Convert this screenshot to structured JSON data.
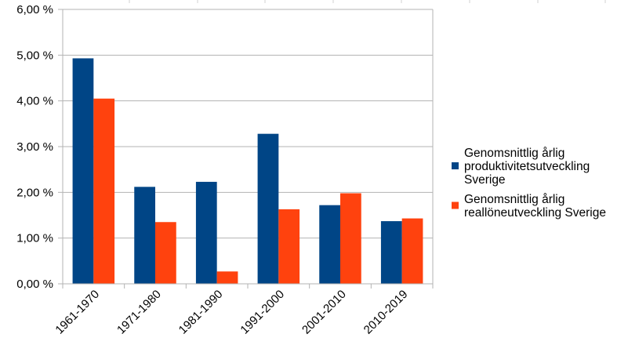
{
  "chart_data": {
    "type": "bar",
    "categories": [
      "1961-1970",
      "1971-1980",
      "1981-1990",
      "1991-2000",
      "2001-2010",
      "2010-2019"
    ],
    "series": [
      {
        "name_lines": [
          "Genomsnittlig årlig",
          "produktivitetsutveckling",
          "Sverige"
        ],
        "values": [
          4.93,
          2.12,
          2.23,
          3.28,
          1.72,
          1.37
        ],
        "color": "#004586"
      },
      {
        "name_lines": [
          "Genomsnittlig årlig",
          "reallöneutveckling Sverige"
        ],
        "values": [
          4.05,
          1.35,
          0.27,
          1.63,
          1.98,
          1.43
        ],
        "color": "#ff420e"
      }
    ],
    "y_ticks": [
      "0,00 %",
      "1,00 %",
      "2,00 %",
      "3,00 %",
      "4,00 %",
      "5,00 %",
      "6,00 %"
    ],
    "ylim": [
      0,
      6
    ],
    "grid": true,
    "legend_position": "right",
    "title": "",
    "xlabel": "",
    "ylabel": ""
  }
}
